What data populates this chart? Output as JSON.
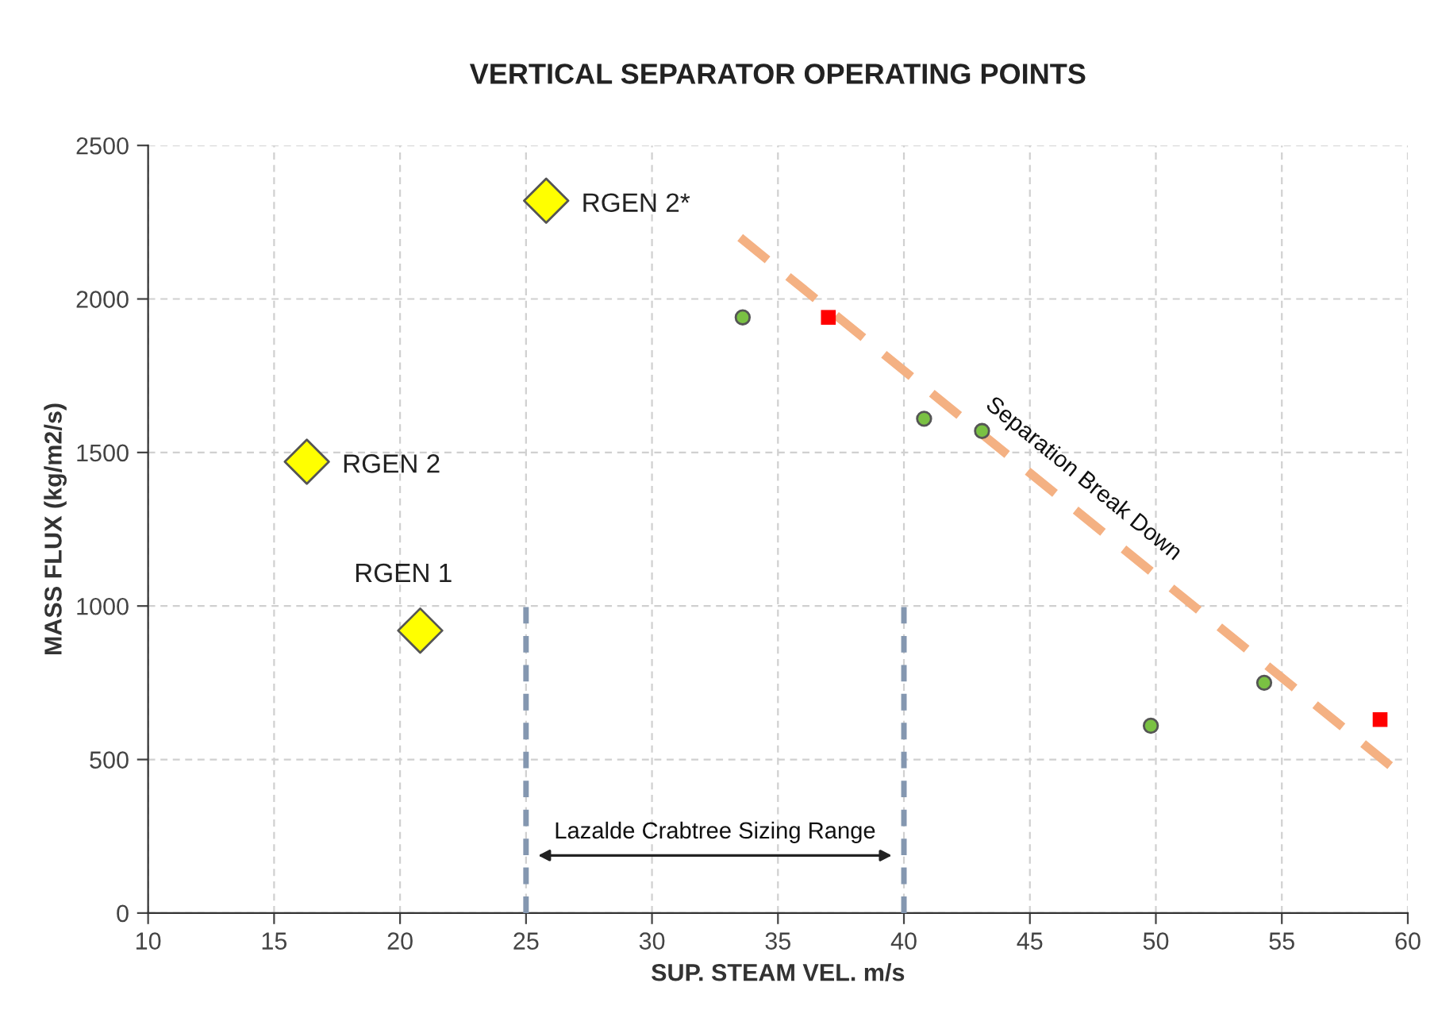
{
  "chart_data": {
    "type": "scatter",
    "title": "VERTICAL SEPARATOR OPERATING POINTS",
    "xlabel": "SUP. STEAM VEL. m/s",
    "ylabel": "MASS FLUX (kg/m2/s)",
    "xlim": [
      10,
      60
    ],
    "xticks": [
      10,
      15,
      20,
      25,
      30,
      35,
      40,
      45,
      50,
      55,
      60
    ],
    "ylim": [
      0,
      2500
    ],
    "yticks": [
      0,
      500,
      1000,
      1500,
      2000,
      2500
    ],
    "grid": true,
    "legend": false,
    "series": [
      {
        "name": "RGEN 1",
        "marker": "diamond",
        "color": "#ffff00",
        "x": [
          20.8
        ],
        "values": [
          920
        ]
      },
      {
        "name": "RGEN 2",
        "marker": "diamond",
        "color": "#ffff00",
        "x": [
          16.3
        ],
        "values": [
          1470
        ]
      },
      {
        "name": "RGEN 2*",
        "marker": "diamond",
        "color": "#ffff00",
        "x": [
          25.8
        ],
        "values": [
          2320
        ]
      },
      {
        "marker": "circle",
        "color": "#7ac143",
        "x": [
          33.6,
          40.8,
          43.1,
          49.8,
          54.3
        ],
        "values": [
          1940,
          1610,
          1570,
          610,
          750
        ]
      },
      {
        "marker": "square",
        "color": "#ff0000",
        "x": [
          37.0,
          58.9
        ],
        "values": [
          1940,
          630
        ]
      },
      {
        "type": "line",
        "line_style": "dashed",
        "color": "#f4b183",
        "x": [
          33.5,
          59.3
        ],
        "values": [
          2200,
          480
        ]
      },
      {
        "type": "line",
        "line_style": "dashed",
        "color": "#8497b0",
        "x": [
          25,
          25
        ],
        "values": [
          0,
          1000
        ]
      },
      {
        "type": "line",
        "line_style": "dashed",
        "color": "#8497b0",
        "x": [
          40,
          40
        ],
        "values": [
          0,
          1000
        ]
      }
    ],
    "annotations": [
      "Lazalde Crabtree Sizing Range",
      "Separation Break Down"
    ]
  }
}
